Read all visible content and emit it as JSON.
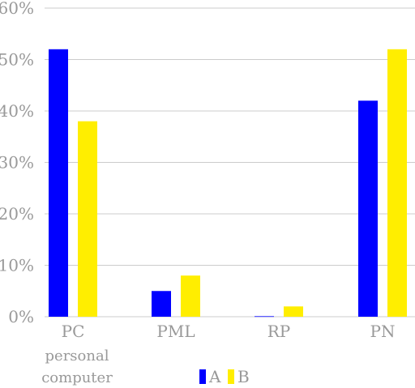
{
  "chart_data": {
    "type": "bar",
    "categories": [
      "PC",
      "PML",
      "RP",
      "PN"
    ],
    "category_sublabels": [
      "personal computer",
      "",
      "",
      ""
    ],
    "series": [
      {
        "name": "A",
        "color": "#0000ff",
        "values": [
          52,
          5,
          0.1,
          42
        ]
      },
      {
        "name": "B",
        "color": "#ffee00",
        "values": [
          38,
          8,
          2,
          52
        ]
      }
    ],
    "y_ticks": [
      "0%",
      "10%",
      "20%",
      "30%",
      "40%",
      "50%",
      "60%"
    ],
    "ylim": [
      0,
      60
    ],
    "grid": true,
    "legend_position": "bottom"
  }
}
